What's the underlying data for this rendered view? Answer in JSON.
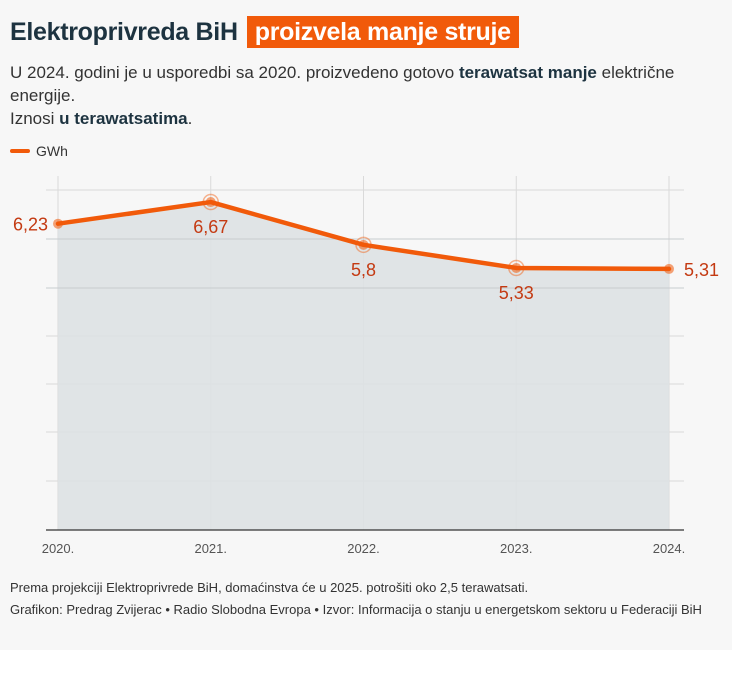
{
  "header": {
    "title_plain": "Elektroprivreda BiH",
    "title_highlight": "proizvela manje struje"
  },
  "subtitle": {
    "line1_a": "U 2024. godini je u usporedbi sa 2020. proizvedeno gotovo ",
    "line1_bold": "terawatsat manje",
    "line1_b": " električne energije.",
    "line2_a": "Iznosi ",
    "line2_bold": "u terawatsatima",
    "line2_b": "."
  },
  "colors": {
    "accent": "#f15a0a",
    "area": "#dde1e3",
    "label": "#c43a12"
  },
  "chart_data": {
    "type": "area",
    "x": [
      "2020.",
      "2021.",
      "2022.",
      "2023.",
      "2024."
    ],
    "series": [
      {
        "name": "GWh",
        "values": [
          6.23,
          6.67,
          5.8,
          5.33,
          5.31
        ]
      }
    ],
    "data_labels": [
      "6,23",
      "6,67",
      "5,8",
      "5,33",
      "5,31"
    ],
    "ylim": [
      0,
      7.2
    ],
    "grid": true,
    "legend": "top-left"
  },
  "footer": {
    "note": "Prema projekciji Elektroprivrede BiH, domaćinstva će u 2025. potrošiti oko 2,5 terawatsati.",
    "credits": "Grafikon: Predrag Zvijerac • Radio Slobodna Evropa • Izvor: Informacija o stanju u energetskom sektoru u Federaciji BiH"
  }
}
